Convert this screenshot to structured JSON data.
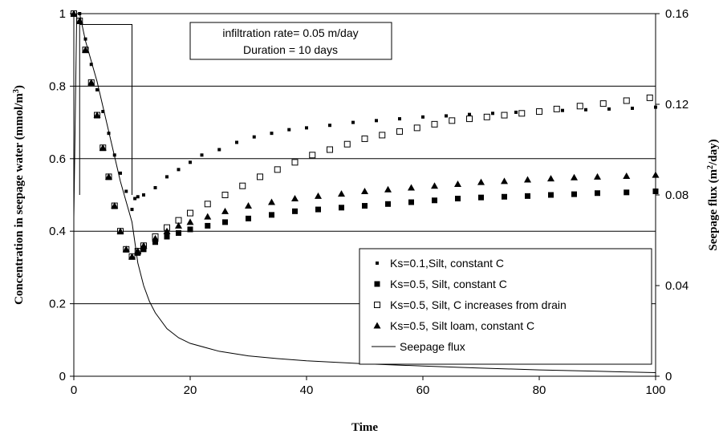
{
  "chart_data": {
    "type": "scatter",
    "xlabel": "Time",
    "ylabel": "Concentration in seepage water (mmol/m",
    "ylabel_sup": "3",
    "ylabel_end": ")",
    "y2label": "Seepage flux (m",
    "y2label_sup": "2",
    "y2label_end": "/day)",
    "xlim": [
      0,
      100
    ],
    "ylim": [
      0,
      1
    ],
    "y2lim": [
      0,
      0.16
    ],
    "xticks": [
      "0",
      "20",
      "40",
      "60",
      "80",
      "100"
    ],
    "yticks": [
      "0",
      "0.2",
      "0.4",
      "0.6",
      "0.8",
      "1"
    ],
    "y2ticks": [
      "0",
      "0.04",
      "0.08",
      "0.12",
      "0.16"
    ],
    "grid": "horizontal",
    "annotation": [
      "infiltration rate= 0.05 m/day",
      "Duration = 10 days"
    ],
    "infiltration_pulse": {
      "start": 1,
      "end": 10,
      "level": 0.97
    },
    "legend_position": "lower-right",
    "series": [
      {
        "name": "Ks=0.1,Silt, constant C",
        "marker": "small-square",
        "points": [
          [
            0,
            1
          ],
          [
            1,
            1
          ],
          [
            2,
            0.93
          ],
          [
            3,
            0.86
          ],
          [
            4,
            0.79
          ],
          [
            5,
            0.73
          ],
          [
            6,
            0.67
          ],
          [
            7,
            0.61
          ],
          [
            8,
            0.56
          ],
          [
            9,
            0.51
          ],
          [
            10,
            0.46
          ],
          [
            10.5,
            0.49
          ],
          [
            11,
            0.495
          ],
          [
            12,
            0.5
          ],
          [
            14,
            0.52
          ],
          [
            16,
            0.55
          ],
          [
            18,
            0.57
          ],
          [
            20,
            0.59
          ],
          [
            22,
            0.61
          ],
          [
            25,
            0.625
          ],
          [
            28,
            0.645
          ],
          [
            31,
            0.66
          ],
          [
            34,
            0.67
          ],
          [
            37,
            0.68
          ],
          [
            40,
            0.685
          ],
          [
            44,
            0.692
          ],
          [
            48,
            0.7
          ],
          [
            52,
            0.705
          ],
          [
            56,
            0.71
          ],
          [
            60,
            0.715
          ],
          [
            64,
            0.718
          ],
          [
            68,
            0.722
          ],
          [
            72,
            0.725
          ],
          [
            76,
            0.728
          ],
          [
            80,
            0.73
          ],
          [
            84,
            0.733
          ],
          [
            88,
            0.735
          ],
          [
            92,
            0.737
          ],
          [
            96,
            0.739
          ],
          [
            100,
            0.742
          ]
        ]
      },
      {
        "name": "Ks=0.5, Silt, constant C",
        "marker": "square",
        "points": [
          [
            0,
            1
          ],
          [
            1,
            0.98
          ],
          [
            2,
            0.9
          ],
          [
            3,
            0.81
          ],
          [
            4,
            0.72
          ],
          [
            5,
            0.63
          ],
          [
            6,
            0.55
          ],
          [
            7,
            0.47
          ],
          [
            8,
            0.4
          ],
          [
            9,
            0.35
          ],
          [
            10,
            0.33
          ],
          [
            11,
            0.34
          ],
          [
            12,
            0.35
          ],
          [
            14,
            0.37
          ],
          [
            16,
            0.385
          ],
          [
            18,
            0.395
          ],
          [
            20,
            0.405
          ],
          [
            23,
            0.415
          ],
          [
            26,
            0.425
          ],
          [
            30,
            0.435
          ],
          [
            34,
            0.445
          ],
          [
            38,
            0.455
          ],
          [
            42,
            0.46
          ],
          [
            46,
            0.465
          ],
          [
            50,
            0.47
          ],
          [
            54,
            0.475
          ],
          [
            58,
            0.48
          ],
          [
            62,
            0.485
          ],
          [
            66,
            0.49
          ],
          [
            70,
            0.493
          ],
          [
            74,
            0.495
          ],
          [
            78,
            0.497
          ],
          [
            82,
            0.5
          ],
          [
            86,
            0.502
          ],
          [
            90,
            0.505
          ],
          [
            95,
            0.507
          ],
          [
            100,
            0.51
          ]
        ]
      },
      {
        "name": "Ks=0.5, Silt, C increases from drain",
        "marker": "open-square",
        "points": [
          [
            0,
            1
          ],
          [
            1,
            0.98
          ],
          [
            2,
            0.9
          ],
          [
            3,
            0.81
          ],
          [
            4,
            0.72
          ],
          [
            5,
            0.63
          ],
          [
            6,
            0.55
          ],
          [
            7,
            0.47
          ],
          [
            8,
            0.4
          ],
          [
            9,
            0.35
          ],
          [
            10,
            0.33
          ],
          [
            11,
            0.345
          ],
          [
            12,
            0.36
          ],
          [
            14,
            0.385
          ],
          [
            16,
            0.41
          ],
          [
            18,
            0.43
          ],
          [
            20,
            0.45
          ],
          [
            23,
            0.475
          ],
          [
            26,
            0.5
          ],
          [
            29,
            0.525
          ],
          [
            32,
            0.55
          ],
          [
            35,
            0.57
          ],
          [
            38,
            0.59
          ],
          [
            41,
            0.61
          ],
          [
            44,
            0.625
          ],
          [
            47,
            0.64
          ],
          [
            50,
            0.655
          ],
          [
            53,
            0.665
          ],
          [
            56,
            0.675
          ],
          [
            59,
            0.685
          ],
          [
            62,
            0.695
          ],
          [
            65,
            0.705
          ],
          [
            68,
            0.71
          ],
          [
            71,
            0.715
          ],
          [
            74,
            0.72
          ],
          [
            77,
            0.725
          ],
          [
            80,
            0.73
          ],
          [
            83,
            0.737
          ],
          [
            87,
            0.745
          ],
          [
            91,
            0.752
          ],
          [
            95,
            0.76
          ],
          [
            99,
            0.768
          ]
        ]
      },
      {
        "name": "Ks=0.5, Silt loam, constant C",
        "marker": "triangle",
        "points": [
          [
            0,
            1
          ],
          [
            1,
            0.98
          ],
          [
            2,
            0.9
          ],
          [
            3,
            0.81
          ],
          [
            4,
            0.72
          ],
          [
            5,
            0.63
          ],
          [
            6,
            0.55
          ],
          [
            7,
            0.47
          ],
          [
            8,
            0.4
          ],
          [
            9,
            0.35
          ],
          [
            10,
            0.33
          ],
          [
            11,
            0.345
          ],
          [
            12,
            0.36
          ],
          [
            14,
            0.38
          ],
          [
            16,
            0.4
          ],
          [
            18,
            0.415
          ],
          [
            20,
            0.425
          ],
          [
            23,
            0.44
          ],
          [
            26,
            0.455
          ],
          [
            30,
            0.47
          ],
          [
            34,
            0.48
          ],
          [
            38,
            0.49
          ],
          [
            42,
            0.497
          ],
          [
            46,
            0.503
          ],
          [
            50,
            0.51
          ],
          [
            54,
            0.515
          ],
          [
            58,
            0.52
          ],
          [
            62,
            0.525
          ],
          [
            66,
            0.53
          ],
          [
            70,
            0.535
          ],
          [
            74,
            0.538
          ],
          [
            78,
            0.542
          ],
          [
            82,
            0.545
          ],
          [
            86,
            0.548
          ],
          [
            90,
            0.55
          ],
          [
            95,
            0.552
          ],
          [
            100,
            0.555
          ]
        ]
      },
      {
        "name": "Seepage flux",
        "marker": "line",
        "axis": "right",
        "points": [
          [
            0,
            0.07
          ],
          [
            0.5,
            0.16
          ],
          [
            1,
            0.16
          ],
          [
            2,
            0.148
          ],
          [
            4,
            0.13
          ],
          [
            6,
            0.108
          ],
          [
            8,
            0.086
          ],
          [
            10,
            0.068
          ],
          [
            11,
            0.05
          ],
          [
            12,
            0.04
          ],
          [
            13,
            0.033
          ],
          [
            14,
            0.028
          ],
          [
            16,
            0.021
          ],
          [
            18,
            0.017
          ],
          [
            20,
            0.0145
          ],
          [
            25,
            0.011
          ],
          [
            30,
            0.009
          ],
          [
            35,
            0.0078
          ],
          [
            40,
            0.0068
          ],
          [
            50,
            0.0055
          ],
          [
            60,
            0.0045
          ],
          [
            70,
            0.0036
          ],
          [
            80,
            0.0028
          ],
          [
            90,
            0.0022
          ],
          [
            100,
            0.0016
          ]
        ]
      }
    ]
  }
}
